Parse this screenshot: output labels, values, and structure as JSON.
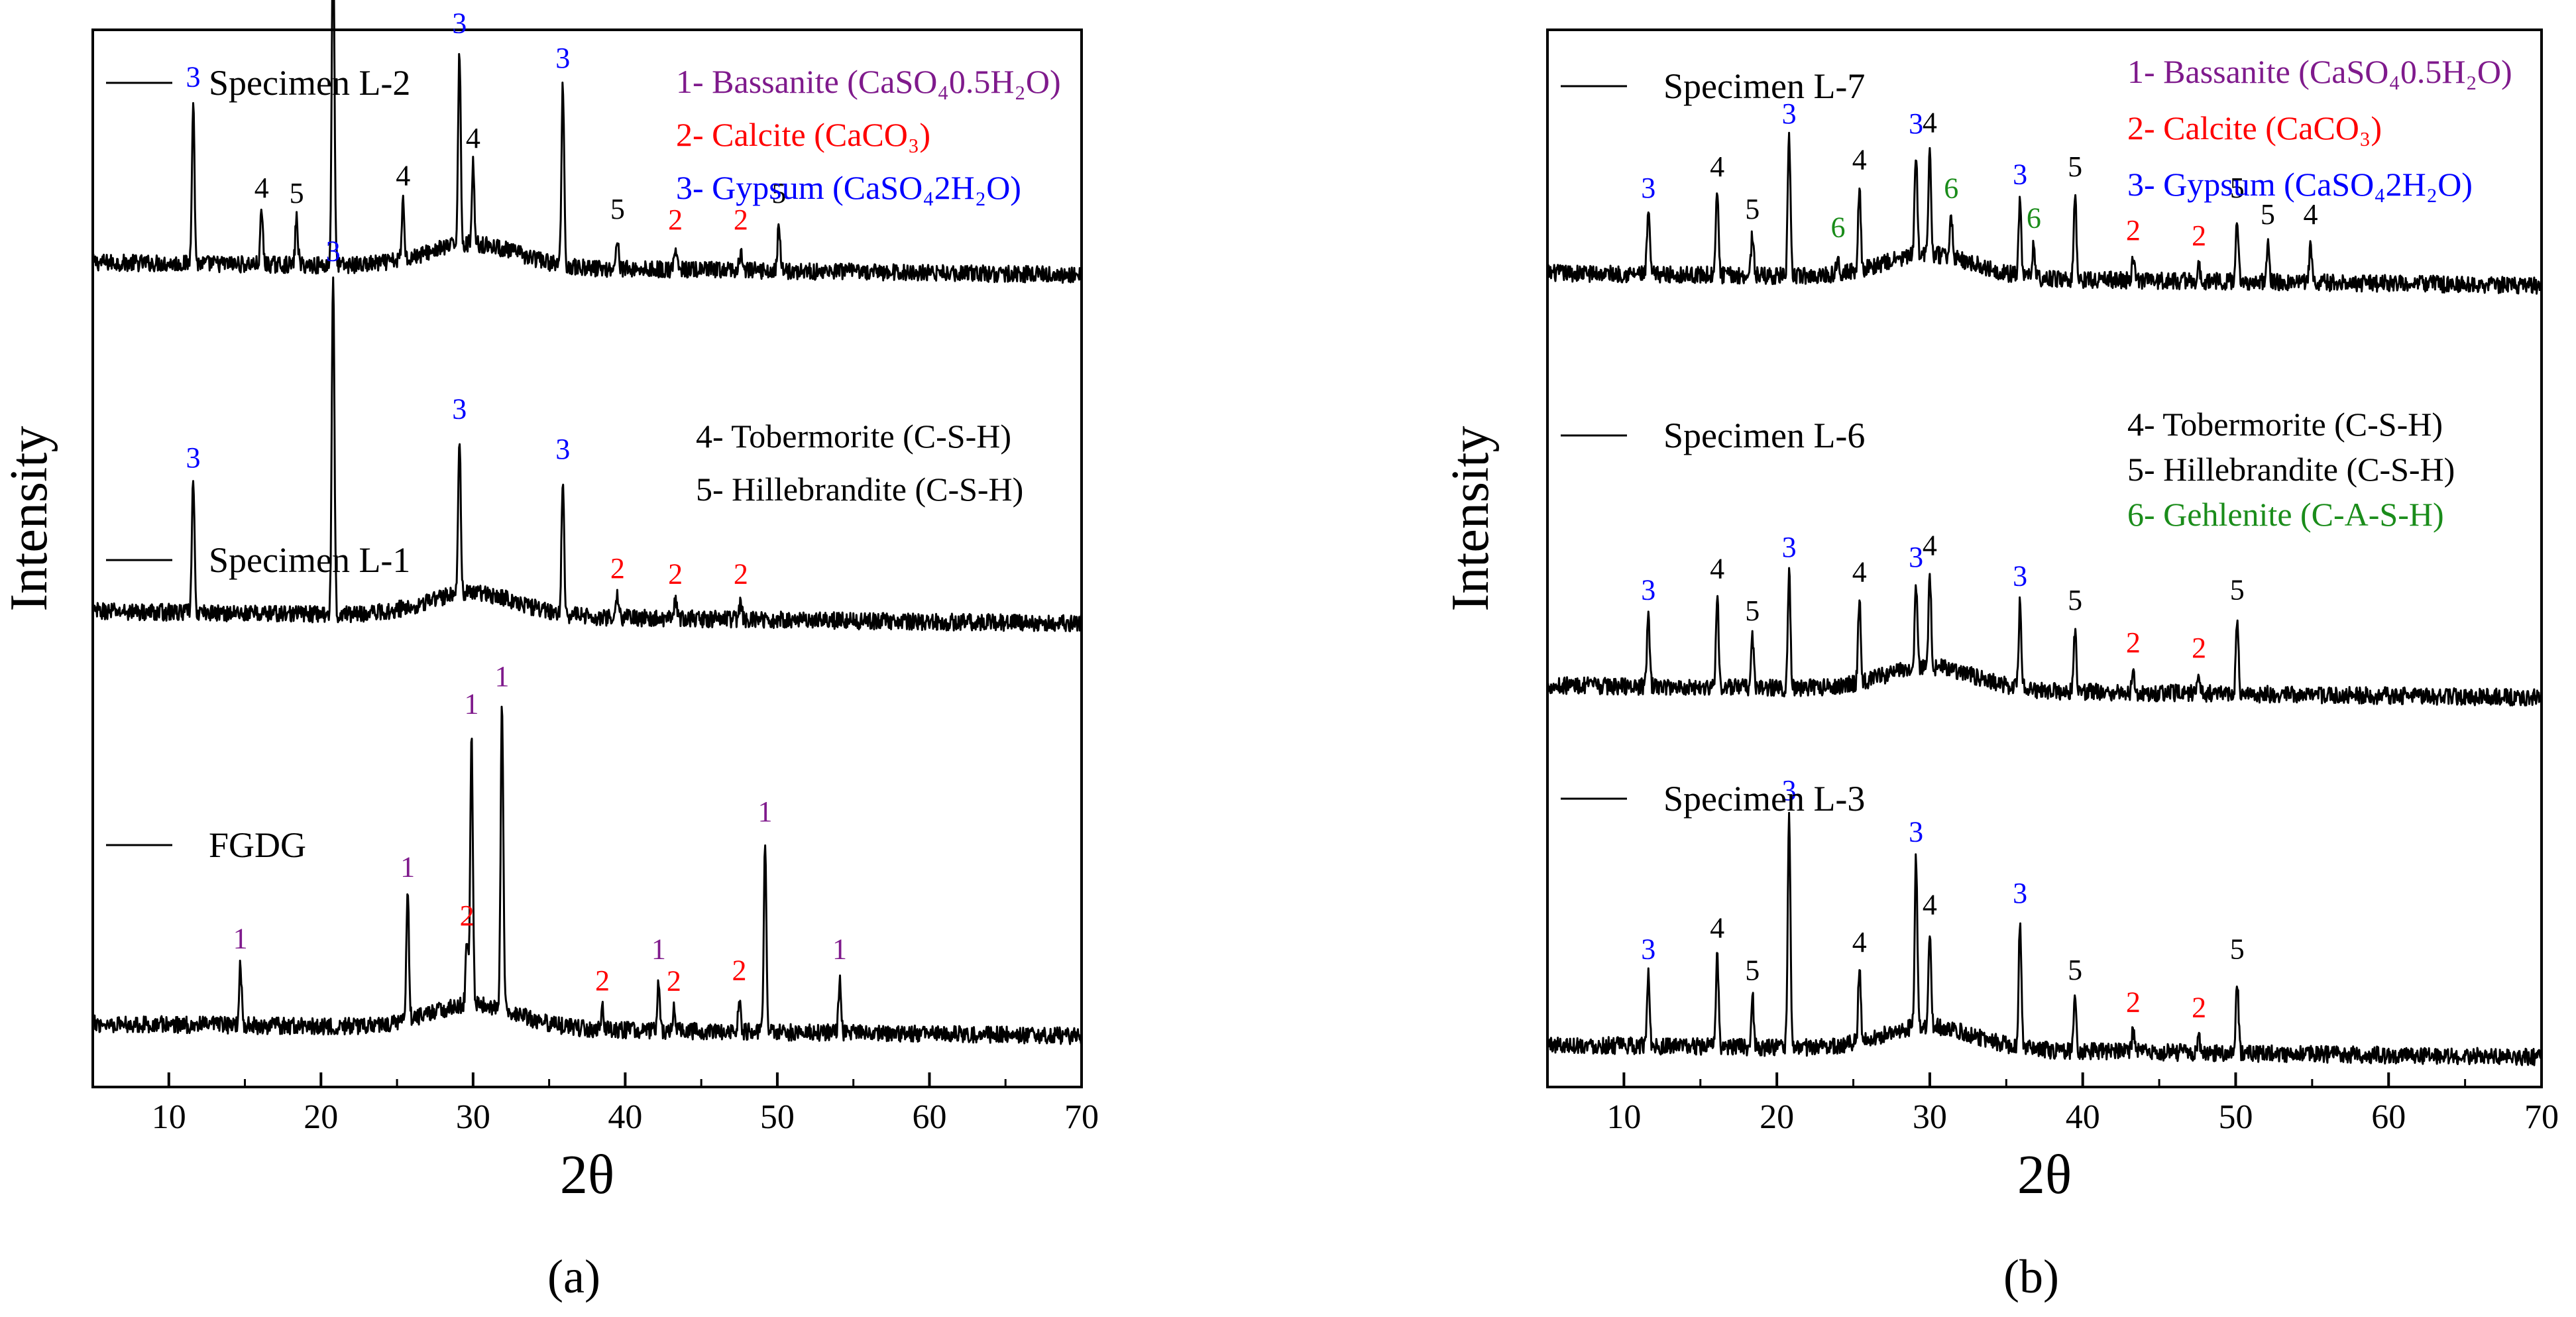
{
  "colors": {
    "axis": "#000000",
    "trace": "#000000",
    "bassanite": "#7f1a8c",
    "calcite": "#ff0000",
    "gypsum": "#0000ff",
    "tobermorite": "#000000",
    "hillebrandite": "#000000",
    "gehlenite": "#1a8c1a"
  },
  "chart_data": [
    {
      "type": "line",
      "panel_label": "(a)",
      "xlabel": "2θ",
      "ylabel": "Intensity",
      "xlim": [
        5,
        70
      ],
      "ylim": [
        0,
        100
      ],
      "x_ticks": [
        "10",
        "20",
        "30",
        "40",
        "50",
        "60",
        "70"
      ],
      "x_tick_values": [
        10,
        20,
        30,
        40,
        50,
        60,
        70
      ],
      "legend_top": [
        {
          "id": "1",
          "text": "1- Bassanite (CaSO₄0.5H₂O)",
          "color": "#7f1a8c"
        },
        {
          "id": "2",
          "text": "2- Calcite (CaCO₃)",
          "color": "#ff0000"
        },
        {
          "id": "3",
          "text": "3- Gypsum (CaSO₄2H₂O)",
          "color": "#0000ff"
        }
      ],
      "legend_bottom": [
        {
          "id": "4",
          "text": "4- Tobermorite (C-S-H)",
          "color": "#000000"
        },
        {
          "id": "5",
          "text": "5- Hillebrandite (C-S-H)",
          "color": "#000000"
        }
      ],
      "series": [
        {
          "name": "Specimen L-2",
          "baseline": 78,
          "peaks": [
            {
              "x": 11.6,
              "h": 15.5,
              "label": "3"
            },
            {
              "x": 16.1,
              "h": 5,
              "label": "4"
            },
            {
              "x": 18.4,
              "h": 4.5,
              "label": "5"
            },
            {
              "x": 20.8,
              "h": 33,
              "label": "3"
            },
            {
              "x": 25.4,
              "h": 5.5,
              "label": "4"
            },
            {
              "x": 29.1,
              "h": 18.5,
              "label": "3"
            },
            {
              "x": 30.0,
              "h": 7.5,
              "label": "4"
            },
            {
              "x": 35.9,
              "h": 17,
              "label": "3"
            },
            {
              "x": 39.5,
              "h": 3,
              "label": "5"
            },
            {
              "x": 43.3,
              "h": 2,
              "label": "2"
            },
            {
              "x": 47.6,
              "h": 2,
              "label": "2"
            },
            {
              "x": 50.1,
              "h": 4.5,
              "label": "5"
            }
          ]
        },
        {
          "name": "Specimen L-1",
          "baseline": 45,
          "peaks": [
            {
              "x": 11.6,
              "h": 12.5,
              "label": "3"
            },
            {
              "x": 20.8,
              "h": 32,
              "label": "3"
            },
            {
              "x": 29.1,
              "h": 15,
              "label": "3"
            },
            {
              "x": 35.9,
              "h": 13,
              "label": "3"
            },
            {
              "x": 39.5,
              "h": 2,
              "label": "2"
            },
            {
              "x": 43.3,
              "h": 1.5,
              "label": "2"
            },
            {
              "x": 47.6,
              "h": 1.5,
              "label": "2"
            }
          ]
        },
        {
          "name": "FGDG",
          "baseline": 6,
          "peaks": [
            {
              "x": 14.7,
              "h": 6,
              "label": "1"
            },
            {
              "x": 25.7,
              "h": 12,
              "label": "1"
            },
            {
              "x": 29.6,
              "h": 6,
              "label": "2"
            },
            {
              "x": 29.9,
              "h": 26,
              "label": "1"
            },
            {
              "x": 31.9,
              "h": 29,
              "label": "1"
            },
            {
              "x": 38.5,
              "h": 2,
              "label": "2"
            },
            {
              "x": 42.2,
              "h": 5,
              "label": "1"
            },
            {
              "x": 43.2,
              "h": 2,
              "label": "2"
            },
            {
              "x": 47.5,
              "h": 3,
              "label": "2"
            },
            {
              "x": 49.2,
              "h": 18,
              "label": "1"
            },
            {
              "x": 54.1,
              "h": 5,
              "label": "1"
            }
          ]
        }
      ]
    },
    {
      "type": "line",
      "panel_label": "(b)",
      "xlabel": "2θ",
      "ylabel": "Intensity",
      "xlim": [
        5,
        70
      ],
      "ylim": [
        0,
        100
      ],
      "x_ticks": [
        "10",
        "20",
        "30",
        "40",
        "50",
        "60",
        "70"
      ],
      "x_tick_values": [
        10,
        20,
        30,
        40,
        50,
        60,
        70
      ],
      "legend_top": [
        {
          "id": "1",
          "text": "1- Bassanite (CaSO₄0.5H₂O)",
          "color": "#7f1a8c"
        },
        {
          "id": "2",
          "text": "2- Calcite (CaCO₃)",
          "color": "#ff0000"
        },
        {
          "id": "3",
          "text": "3- Gypsum (CaSO₄2H₂O)",
          "color": "#0000ff"
        }
      ],
      "legend_bottom": [
        {
          "id": "4",
          "text": "4- Tobermorite (C-S-H)",
          "color": "#000000"
        },
        {
          "id": "5",
          "text": "5- Hillebrandite (C-S-H)",
          "color": "#000000"
        },
        {
          "id": "6",
          "text": "6- Gehlenite (C-A-S-H)",
          "color": "#1a8c1a"
        }
      ],
      "series": [
        {
          "name": "Specimen L-7",
          "baseline": 77,
          "peaks": [
            {
              "x": 11.6,
              "h": 6,
              "label": "3"
            },
            {
              "x": 16.1,
              "h": 8,
              "label": "4"
            },
            {
              "x": 18.4,
              "h": 4,
              "label": "5"
            },
            {
              "x": 20.8,
              "h": 13,
              "label": "3"
            },
            {
              "x": 24.0,
              "h": 2,
              "label": "6"
            },
            {
              "x": 25.4,
              "h": 8,
              "label": "4"
            },
            {
              "x": 29.1,
              "h": 10,
              "label": "3"
            },
            {
              "x": 30.0,
              "h": 10,
              "label": "4"
            },
            {
              "x": 31.4,
              "h": 4,
              "label": "6"
            },
            {
              "x": 35.9,
              "h": 7,
              "label": "3"
            },
            {
              "x": 36.8,
              "h": 3,
              "label": "6"
            },
            {
              "x": 39.5,
              "h": 8,
              "label": "5"
            },
            {
              "x": 43.3,
              "h": 2,
              "label": "2"
            },
            {
              "x": 47.6,
              "h": 1.5,
              "label": "2"
            },
            {
              "x": 50.1,
              "h": 6,
              "label": "5"
            },
            {
              "x": 52.1,
              "h": 3.5,
              "label": "5"
            },
            {
              "x": 54.9,
              "h": 3.5,
              "label": "4"
            }
          ]
        },
        {
          "name": "Specimen L-6",
          "baseline": 38,
          "peaks": [
            {
              "x": 11.6,
              "h": 7,
              "label": "3"
            },
            {
              "x": 16.1,
              "h": 9,
              "label": "4"
            },
            {
              "x": 18.4,
              "h": 5,
              "label": "5"
            },
            {
              "x": 20.8,
              "h": 11,
              "label": "3"
            },
            {
              "x": 25.4,
              "h": 8,
              "label": "4"
            },
            {
              "x": 29.1,
              "h": 8,
              "label": "3"
            },
            {
              "x": 30.0,
              "h": 9,
              "label": "4"
            },
            {
              "x": 35.9,
              "h": 8,
              "label": "3"
            },
            {
              "x": 39.5,
              "h": 6,
              "label": "5"
            },
            {
              "x": 43.3,
              "h": 2,
              "label": "2"
            },
            {
              "x": 47.6,
              "h": 1.5,
              "label": "2"
            },
            {
              "x": 50.1,
              "h": 7,
              "label": "5"
            }
          ]
        },
        {
          "name": "Specimen L-3",
          "baseline": 4,
          "peaks": [
            {
              "x": 11.6,
              "h": 7,
              "label": "3"
            },
            {
              "x": 16.1,
              "h": 9,
              "label": "4"
            },
            {
              "x": 18.4,
              "h": 5,
              "label": "5"
            },
            {
              "x": 20.8,
              "h": 22,
              "label": "3"
            },
            {
              "x": 25.4,
              "h": 7,
              "label": "4"
            },
            {
              "x": 29.1,
              "h": 16,
              "label": "3"
            },
            {
              "x": 30.0,
              "h": 9,
              "label": "4"
            },
            {
              "x": 35.9,
              "h": 12,
              "label": "3"
            },
            {
              "x": 39.5,
              "h": 5,
              "label": "5"
            },
            {
              "x": 43.3,
              "h": 2,
              "label": "2"
            },
            {
              "x": 47.6,
              "h": 1.5,
              "label": "2"
            },
            {
              "x": 50.1,
              "h": 7,
              "label": "5"
            }
          ]
        }
      ]
    }
  ]
}
